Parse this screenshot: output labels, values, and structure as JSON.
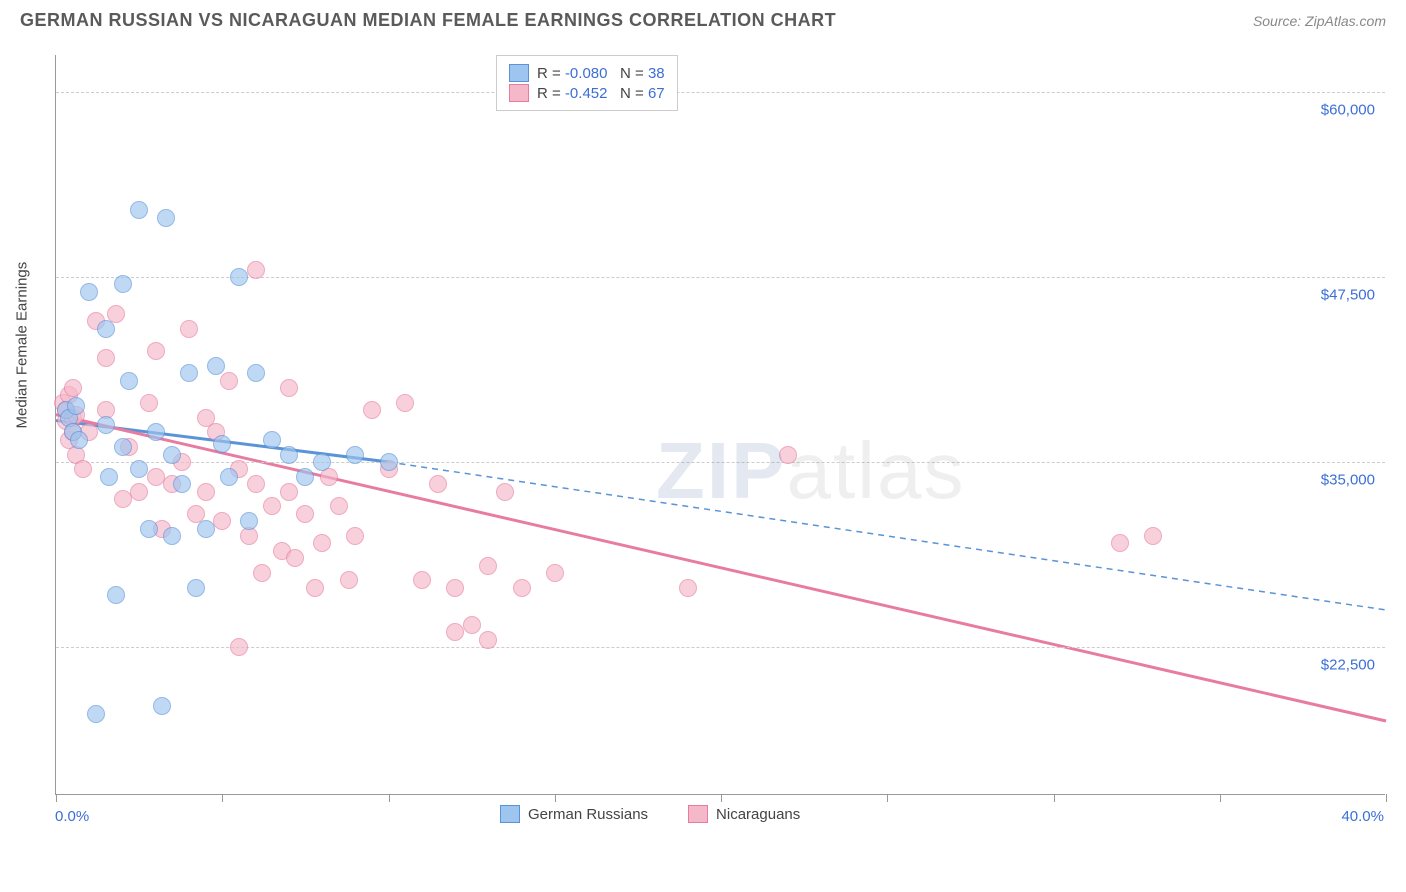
{
  "title": "GERMAN RUSSIAN VS NICARAGUAN MEDIAN FEMALE EARNINGS CORRELATION CHART",
  "source": "Source: ZipAtlas.com",
  "watermark_zip": "ZIP",
  "watermark_rest": "atlas",
  "chart": {
    "type": "scatter",
    "y_axis_label": "Median Female Earnings",
    "x_min": 0.0,
    "x_max": 40.0,
    "x_min_label": "0.0%",
    "x_max_label": "40.0%",
    "x_tick_step": 5.0,
    "y_min": 12500,
    "y_max": 62500,
    "y_grid": [
      {
        "value": 22500,
        "label": "$22,500"
      },
      {
        "value": 35000,
        "label": "$35,000"
      },
      {
        "value": 47500,
        "label": "$47,500"
      },
      {
        "value": 60000,
        "label": "$60,000"
      }
    ],
    "background_color": "#ffffff",
    "grid_color": "#cccccc",
    "axis_color": "#999999",
    "tick_label_color": "#3b6fd6",
    "axis_label_color": "#444444"
  },
  "series": [
    {
      "id": "german_russians",
      "name": "German Russians",
      "fill_color": "#9ec5f0",
      "stroke_color": "#5a93d6",
      "R_label": "R =",
      "R": "-0.080",
      "N_label": "N =",
      "N": "38",
      "trend": {
        "x1": 0,
        "y1": 37800,
        "x2": 10,
        "y2": 35000,
        "extend_x2": 40,
        "extend_y2": 25000,
        "dash_extend": true,
        "width": 3
      },
      "points": [
        [
          0.3,
          38500
        ],
        [
          0.4,
          38000
        ],
        [
          0.5,
          37000
        ],
        [
          0.6,
          38800
        ],
        [
          0.7,
          36500
        ],
        [
          1.0,
          46500
        ],
        [
          1.2,
          18000
        ],
        [
          1.5,
          37500
        ],
        [
          1.5,
          44000
        ],
        [
          1.6,
          34000
        ],
        [
          1.8,
          26000
        ],
        [
          2.0,
          36000
        ],
        [
          2.0,
          47000
        ],
        [
          2.2,
          40500
        ],
        [
          2.5,
          52000
        ],
        [
          2.5,
          34500
        ],
        [
          2.8,
          30500
        ],
        [
          3.0,
          37000
        ],
        [
          3.2,
          18500
        ],
        [
          3.3,
          51500
        ],
        [
          3.5,
          30000
        ],
        [
          3.5,
          35500
        ],
        [
          3.8,
          33500
        ],
        [
          4.0,
          41000
        ],
        [
          4.2,
          26500
        ],
        [
          4.5,
          30500
        ],
        [
          4.8,
          41500
        ],
        [
          5.0,
          36200
        ],
        [
          5.2,
          34000
        ],
        [
          5.5,
          47500
        ],
        [
          5.8,
          31000
        ],
        [
          6.0,
          41000
        ],
        [
          6.5,
          36500
        ],
        [
          7.0,
          35500
        ],
        [
          7.5,
          34000
        ],
        [
          8.0,
          35000
        ],
        [
          9.0,
          35500
        ],
        [
          10.0,
          35000
        ]
      ]
    },
    {
      "id": "nicaraguans",
      "name": "Nicaraguans",
      "fill_color": "#f5b8c9",
      "stroke_color": "#e87ba0",
      "R_label": "R =",
      "R": "-0.452",
      "N_label": "N =",
      "N": "67",
      "trend": {
        "x1": 0,
        "y1": 38200,
        "x2": 40,
        "y2": 17500,
        "dash_extend": false,
        "width": 3
      },
      "points": [
        [
          0.2,
          39000
        ],
        [
          0.3,
          38500
        ],
        [
          0.3,
          37800
        ],
        [
          0.4,
          39500
        ],
        [
          0.4,
          36500
        ],
        [
          0.5,
          38000
        ],
        [
          0.5,
          40000
        ],
        [
          0.5,
          37000
        ],
        [
          0.6,
          38200
        ],
        [
          0.6,
          35500
        ],
        [
          0.8,
          34500
        ],
        [
          1.0,
          37000
        ],
        [
          1.2,
          44500
        ],
        [
          1.5,
          42000
        ],
        [
          1.5,
          38500
        ],
        [
          1.8,
          45000
        ],
        [
          2.0,
          32500
        ],
        [
          2.2,
          36000
        ],
        [
          2.5,
          33000
        ],
        [
          2.8,
          39000
        ],
        [
          3.0,
          34000
        ],
        [
          3.0,
          42500
        ],
        [
          3.2,
          30500
        ],
        [
          3.5,
          33500
        ],
        [
          3.8,
          35000
        ],
        [
          4.0,
          44000
        ],
        [
          4.2,
          31500
        ],
        [
          4.5,
          33000
        ],
        [
          4.5,
          38000
        ],
        [
          4.8,
          37000
        ],
        [
          5.0,
          31000
        ],
        [
          5.2,
          40500
        ],
        [
          5.5,
          22500
        ],
        [
          5.5,
          34500
        ],
        [
          5.8,
          30000
        ],
        [
          6.0,
          33500
        ],
        [
          6.0,
          48000
        ],
        [
          6.2,
          27500
        ],
        [
          6.5,
          32000
        ],
        [
          6.8,
          29000
        ],
        [
          7.0,
          40000
        ],
        [
          7.0,
          33000
        ],
        [
          7.2,
          28500
        ],
        [
          7.5,
          31500
        ],
        [
          7.8,
          26500
        ],
        [
          8.0,
          29500
        ],
        [
          8.2,
          34000
        ],
        [
          8.5,
          32000
        ],
        [
          8.8,
          27000
        ],
        [
          9.0,
          30000
        ],
        [
          9.5,
          38500
        ],
        [
          10.0,
          34500
        ],
        [
          10.5,
          39000
        ],
        [
          11.0,
          27000
        ],
        [
          11.5,
          33500
        ],
        [
          12.0,
          23500
        ],
        [
          12.0,
          26500
        ],
        [
          12.5,
          24000
        ],
        [
          13.0,
          28000
        ],
        [
          13.0,
          23000
        ],
        [
          13.5,
          33000
        ],
        [
          14.0,
          26500
        ],
        [
          15.0,
          27500
        ],
        [
          19.0,
          26500
        ],
        [
          22.0,
          35500
        ],
        [
          32.0,
          29500
        ],
        [
          33.0,
          30000
        ]
      ]
    }
  ]
}
